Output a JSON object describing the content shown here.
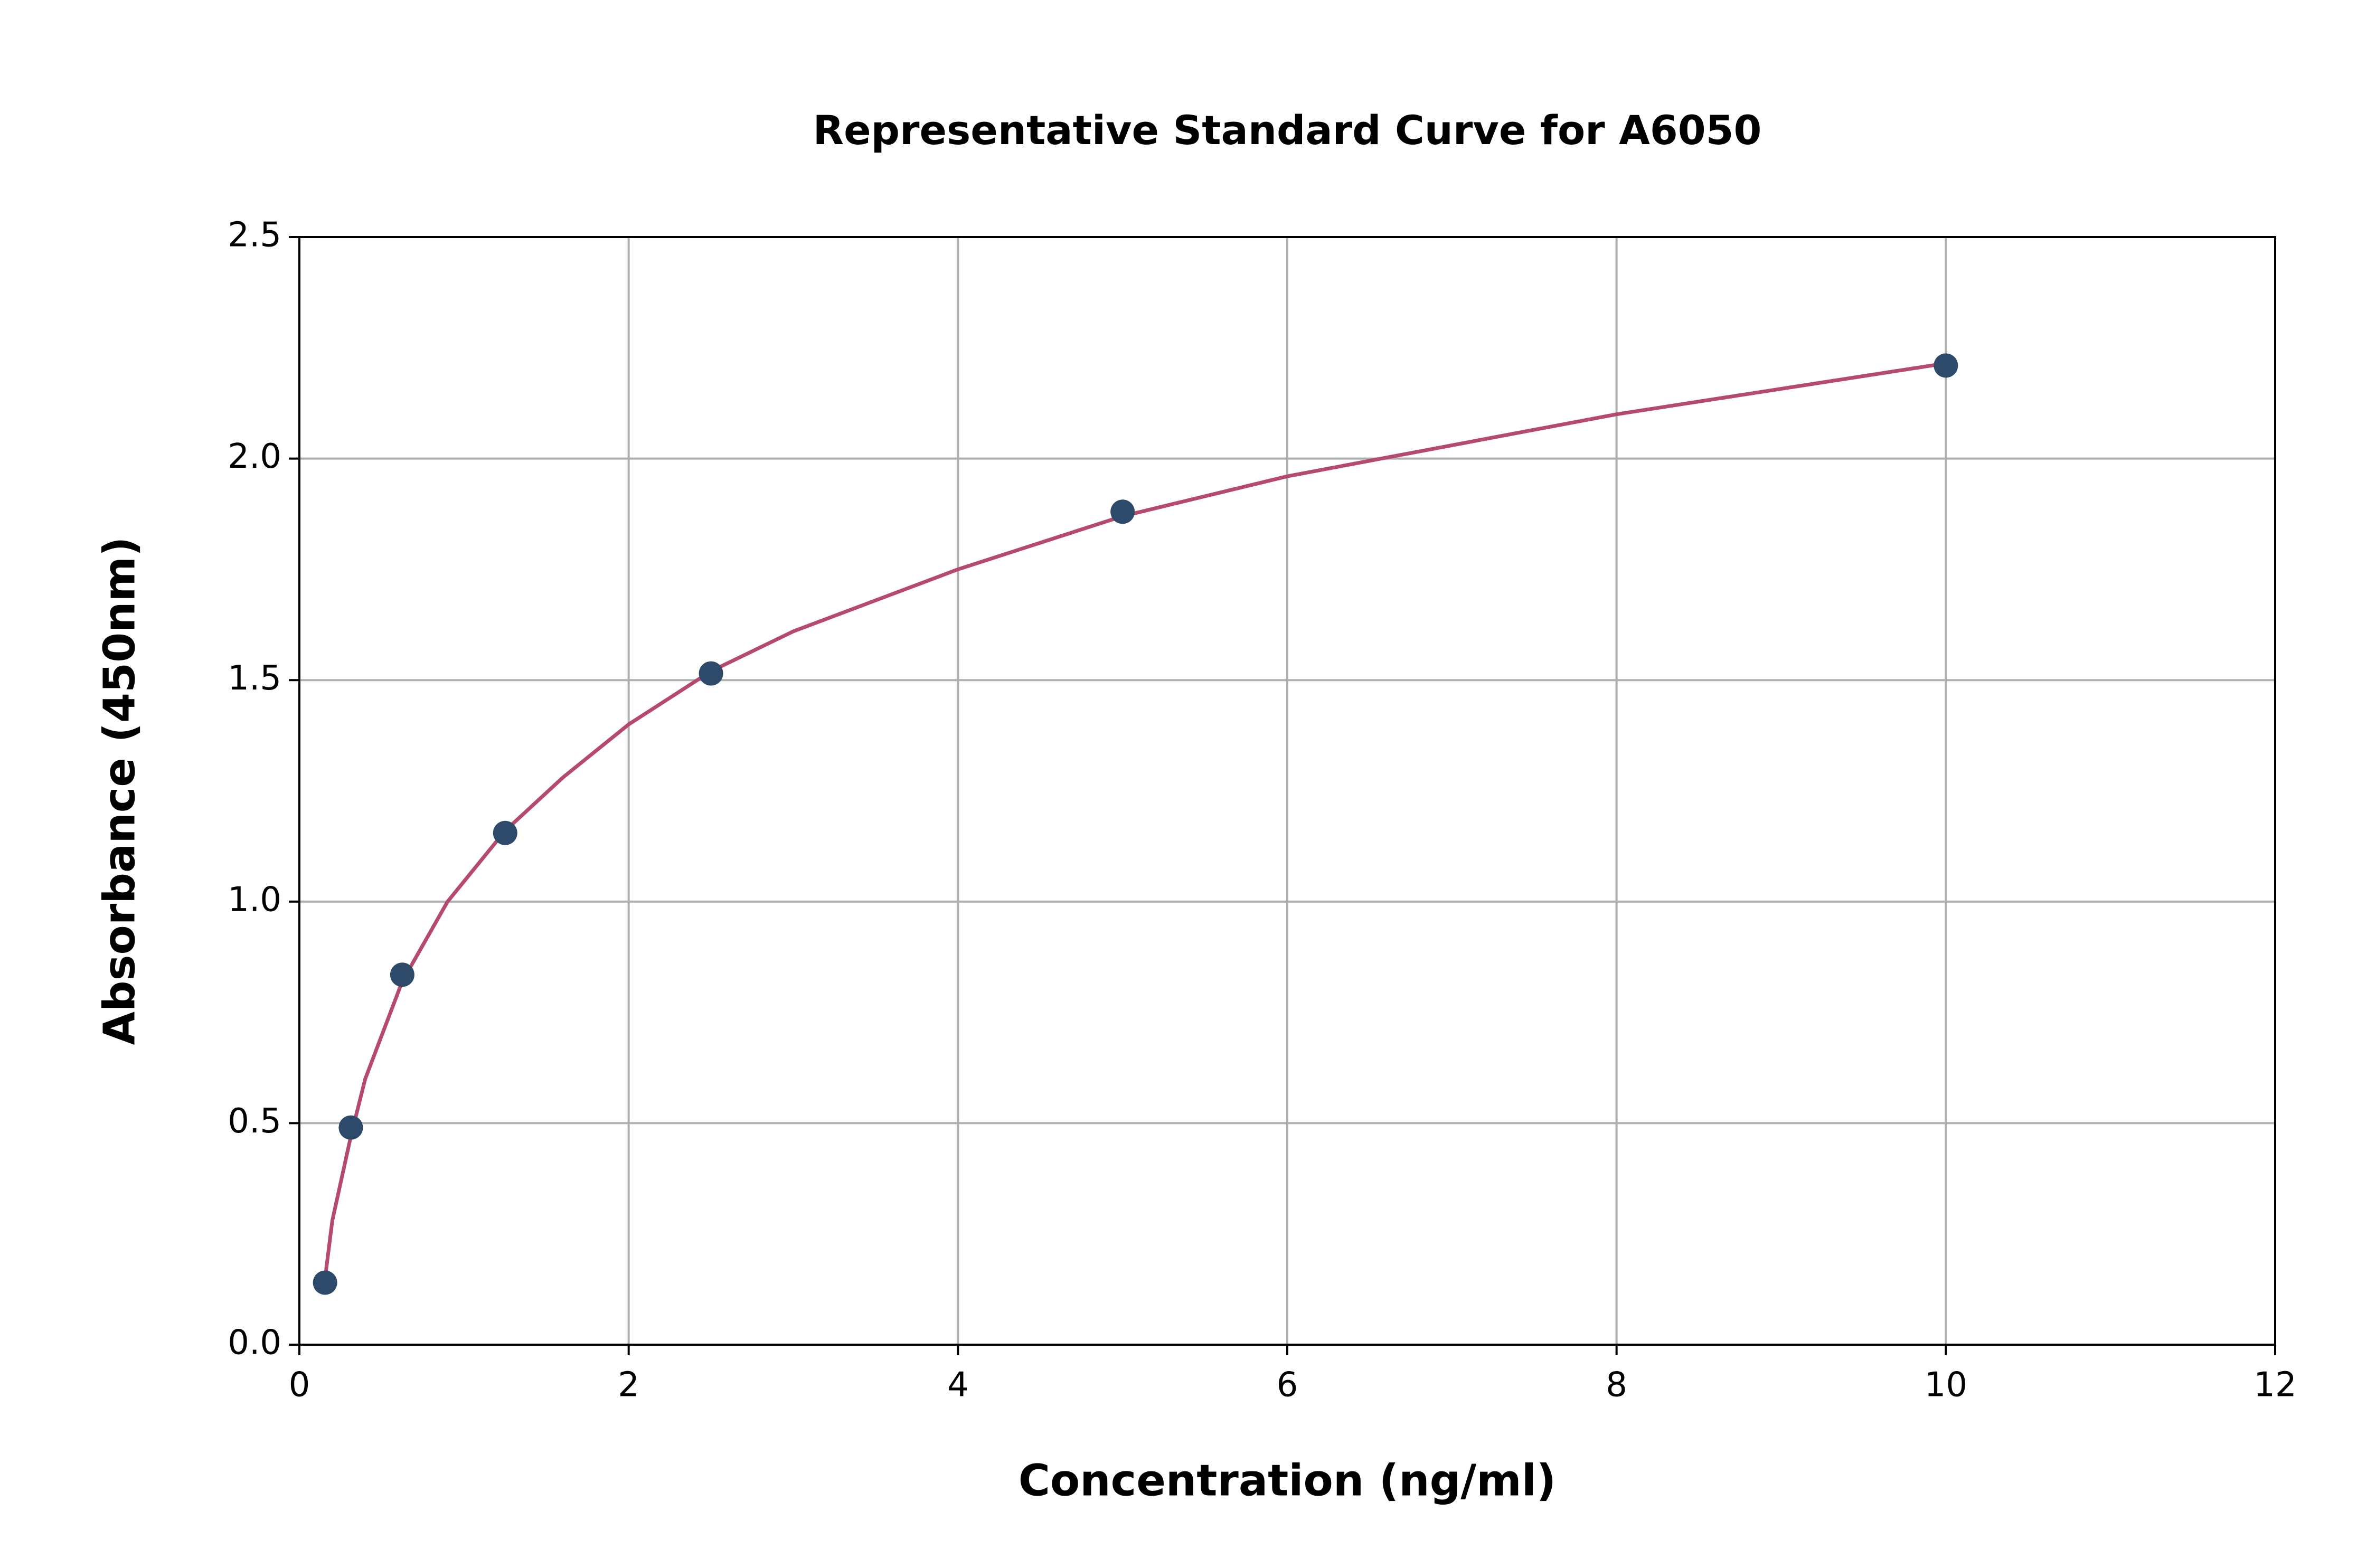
{
  "chart_data": {
    "type": "scatter",
    "title": "Representative Standard Curve for A6050",
    "x_label": "Concentration (ng/ml)",
    "y_label": "Absorbance (450nm)",
    "xlim": [
      0,
      12
    ],
    "ylim": [
      0,
      2.5
    ],
    "xticks": [
      0,
      2,
      4,
      6,
      8,
      10,
      12
    ],
    "yticks": [
      {
        "value": 0,
        "label": "0.0"
      },
      {
        "value": 0.5,
        "label": "0.5"
      },
      {
        "value": 1,
        "label": "1.0"
      },
      {
        "value": 1.5,
        "label": "1.5"
      },
      {
        "value": 2,
        "label": "2.0"
      },
      {
        "value": 2.5,
        "label": "2.5"
      }
    ],
    "grid": true,
    "series": [
      {
        "type": "scatter",
        "color": "#2e4a6b",
        "x": [
          0.156,
          0.3125,
          0.625,
          1.25,
          2.5,
          5,
          10
        ],
        "values": [
          0.14,
          0.49,
          0.835,
          1.155,
          1.515,
          1.88,
          2.21
        ]
      },
      {
        "type": "line",
        "color": "#b5496e",
        "x": [
          0.156,
          0.2,
          0.3125,
          0.4,
          0.625,
          0.9,
          1.25,
          1.6,
          2,
          2.5,
          3,
          4,
          5,
          6,
          8,
          10
        ],
        "values": [
          0.15,
          0.28,
          0.47,
          0.6,
          0.82,
          1.0,
          1.16,
          1.28,
          1.4,
          1.52,
          1.61,
          1.75,
          1.87,
          1.96,
          2.1,
          2.215
        ]
      }
    ]
  }
}
